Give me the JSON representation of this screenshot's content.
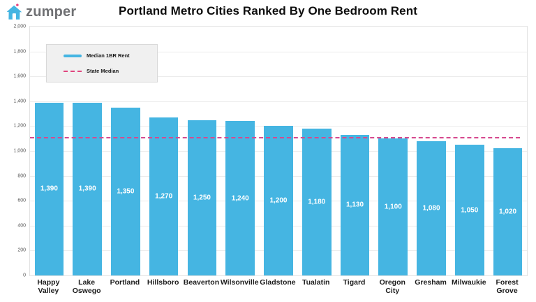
{
  "logo": {
    "text": "zumper"
  },
  "title": "Portland Metro Cities Ranked By One Bedroom Rent",
  "legend": [
    {
      "label": "Median 1BR Rent",
      "type": "line",
      "color": "#45b5e2"
    },
    {
      "label": "State Median",
      "type": "dashed",
      "color": "#e0457e"
    }
  ],
  "colors": {
    "bar": "#45b5e2",
    "median_line": "#d6498f",
    "logo_blue": "#45b5e2",
    "logo_dot": "#e8457e"
  },
  "chart_data": {
    "type": "bar",
    "title": "Portland Metro Cities Ranked By One Bedroom Rent",
    "categories": [
      "Happy Valley",
      "Lake Oswego",
      "Portland",
      "Hillsboro",
      "Beaverton",
      "Wilsonville",
      "Gladstone",
      "Tualatin",
      "Tigard",
      "Oregon City",
      "Gresham",
      "Milwaukie",
      "Forest Grove"
    ],
    "values": [
      1390,
      1390,
      1350,
      1270,
      1250,
      1240,
      1200,
      1180,
      1130,
      1100,
      1080,
      1050,
      1020
    ],
    "bar_labels": [
      "1,390",
      "1,390",
      "1,350",
      "1,270",
      "1,250",
      "1,240",
      "1,200",
      "1,180",
      "1,130",
      "1,100",
      "1,080",
      "1,050",
      "1,020"
    ],
    "series_name": "Median 1BR Rent",
    "state_median": 1100,
    "xlabel": "",
    "ylabel": "",
    "ylim": [
      0,
      2000
    ],
    "y_ticks": [
      "2,000",
      "1,800",
      "1,600",
      "1,400",
      "1,200",
      "1,000",
      "800",
      "600",
      "400",
      "200",
      "0"
    ],
    "grid": true,
    "legend_position": "top-left"
  }
}
